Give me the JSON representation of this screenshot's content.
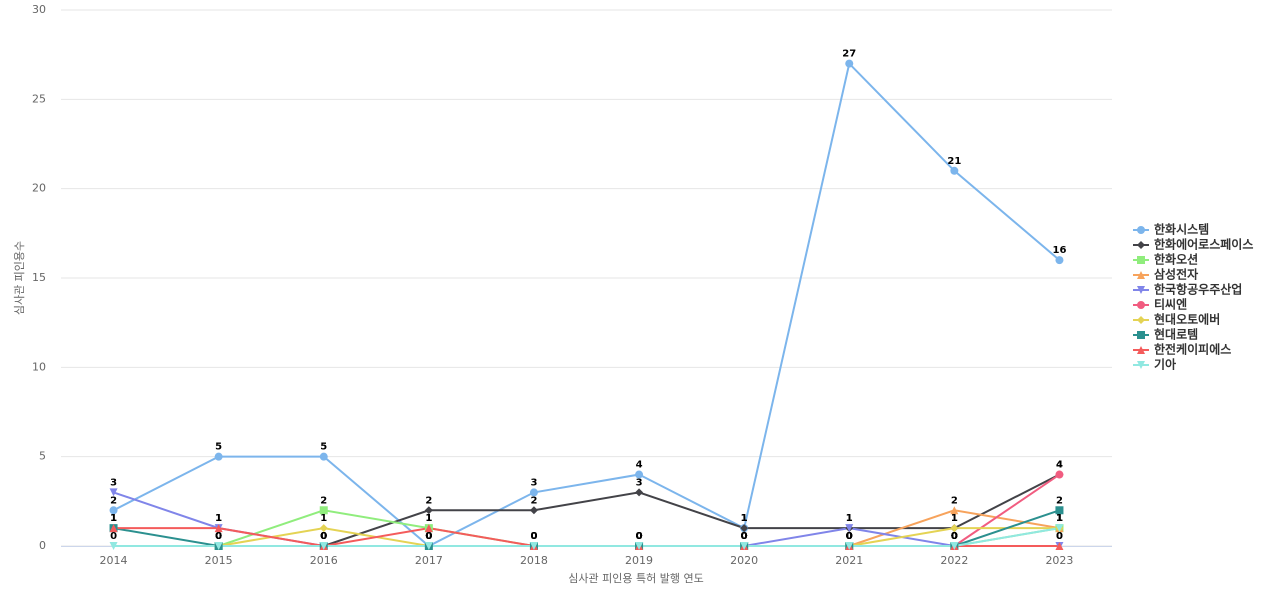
{
  "chart_data": {
    "type": "line",
    "x_label": "심사관 피인용 특허 발행 연도",
    "y_label": "심사관 피인용수",
    "categories": [
      "2014",
      "2015",
      "2016",
      "2017",
      "2018",
      "2019",
      "2020",
      "2021",
      "2022",
      "2023"
    ],
    "ylim": [
      0,
      30
    ],
    "yticks": [
      0,
      5,
      10,
      15,
      20,
      25,
      30
    ],
    "grid": true,
    "legend": "right",
    "series": [
      {
        "name": "한화시스템",
        "color": "#7cb5ec",
        "values": [
          2,
          5,
          5,
          0,
          3,
          4,
          1,
          27,
          21,
          16
        ]
      },
      {
        "name": "한화에어로스페이스",
        "color": "#434348",
        "values": [
          null,
          null,
          0,
          2,
          2,
          3,
          1,
          1,
          1,
          4
        ]
      },
      {
        "name": "한화오션",
        "color": "#90ed7d",
        "values": [
          null,
          0,
          2,
          1,
          0,
          0,
          0,
          0,
          0,
          1
        ]
      },
      {
        "name": "삼성전자",
        "color": "#f7a35c",
        "values": [
          null,
          null,
          null,
          null,
          null,
          null,
          null,
          0,
          2,
          1
        ]
      },
      {
        "name": "한국항공우주산업",
        "color": "#8085e9",
        "values": [
          3,
          1,
          0,
          0,
          0,
          0,
          0,
          1,
          0,
          0
        ]
      },
      {
        "name": "티씨엔",
        "color": "#f15c80",
        "values": [
          null,
          null,
          null,
          null,
          null,
          null,
          null,
          null,
          0,
          4
        ]
      },
      {
        "name": "현대오토에버",
        "color": "#e4d354",
        "values": [
          null,
          0,
          1,
          0,
          0,
          0,
          0,
          0,
          1,
          1
        ]
      },
      {
        "name": "현대로템",
        "color": "#2b908f",
        "values": [
          1,
          0,
          0,
          0,
          0,
          0,
          0,
          0,
          0,
          2
        ]
      },
      {
        "name": "한전케이피에스",
        "color": "#f45b5b",
        "values": [
          1,
          1,
          0,
          1,
          0,
          0,
          0,
          0,
          0,
          0
        ]
      },
      {
        "name": "기아",
        "color": "#91e8e1",
        "values": [
          0,
          0,
          0,
          0,
          0,
          0,
          0,
          0,
          0,
          1
        ]
      }
    ]
  }
}
